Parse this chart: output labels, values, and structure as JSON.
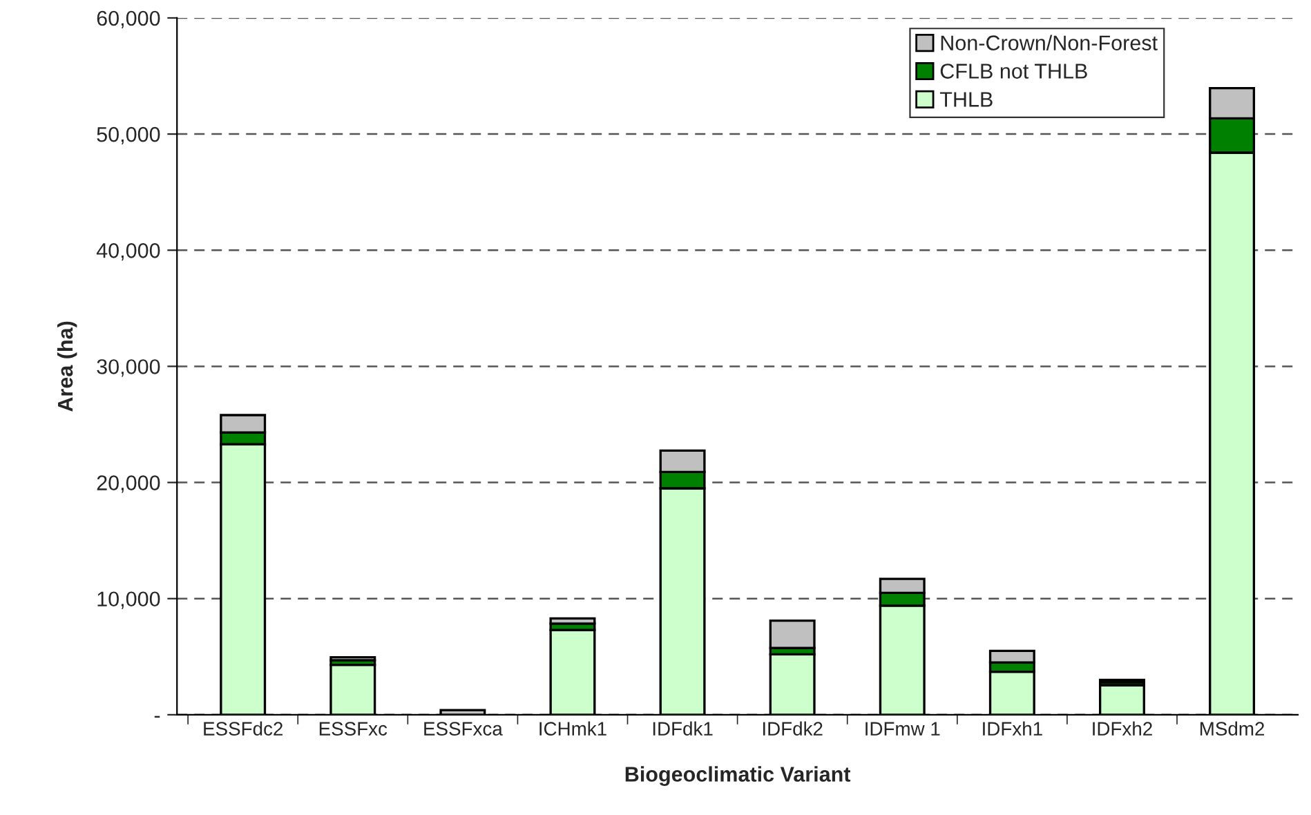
{
  "chart_data": {
    "type": "bar",
    "stacked": true,
    "xlabel": "Biogeoclimatic Variant",
    "ylabel": "Area (ha)",
    "categories": [
      "ESSFdc2",
      "ESSFxc",
      "ESSFxca",
      "ICHmk1",
      "IDFdk1",
      "IDFdk2",
      "IDFmw 1",
      "IDFxh1",
      "IDFxh2",
      "MSdm2"
    ],
    "series": [
      {
        "name": "THLB",
        "color": "#ccffcc",
        "values": [
          23300,
          4300,
          null,
          7300,
          19500,
          5200,
          9400,
          3700,
          2550,
          48400
        ]
      },
      {
        "name": "CFLB not THLB",
        "color": "#008000",
        "values": [
          1000,
          400,
          null,
          550,
          1400,
          550,
          1100,
          800,
          250,
          2950
        ]
      },
      {
        "name": "Non-Crown/Non-Forest",
        "color": "#c0c0c0",
        "values": [
          1500,
          250,
          400,
          450,
          1850,
          2350,
          1200,
          1000,
          200,
          2600
        ]
      }
    ],
    "ylim": [
      0,
      60000
    ],
    "yticks": [
      {
        "value": 0,
        "label": "-"
      },
      {
        "value": 10000,
        "label": "10,000"
      },
      {
        "value": 20000,
        "label": "20,000"
      },
      {
        "value": 30000,
        "label": "30,000"
      },
      {
        "value": 40000,
        "label": "40,000"
      },
      {
        "value": 50000,
        "label": "50,000"
      },
      {
        "value": 60000,
        "label": "60,000"
      }
    ],
    "grid": "y",
    "legend": "top right"
  }
}
